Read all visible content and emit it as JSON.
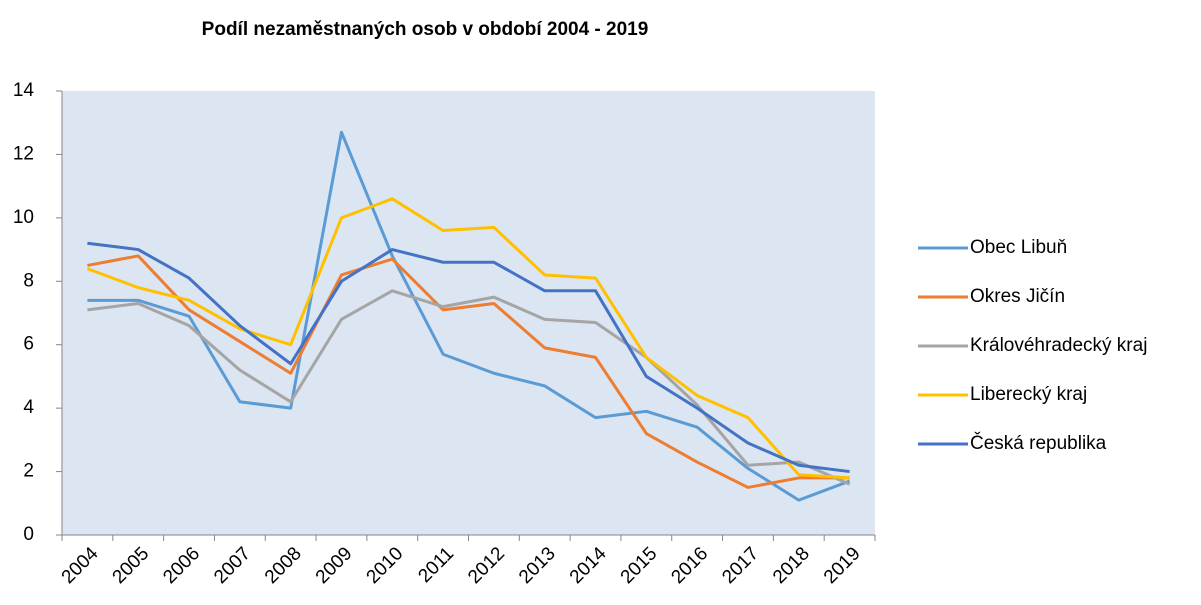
{
  "chart_data": {
    "type": "line",
    "title": "Podíl nezaměstnaných osob v období 2004 - 2019",
    "categories": [
      "2004",
      "2005",
      "2006",
      "2007",
      "2008",
      "2009",
      "2010",
      "2011",
      "2012",
      "2013",
      "2014",
      "2015",
      "2016",
      "2017",
      "2018",
      "2019"
    ],
    "series": [
      {
        "name": "Obec Libuň",
        "color": "#5b9bd5",
        "values": [
          7.4,
          7.4,
          6.9,
          4.2,
          4.0,
          12.7,
          8.8,
          5.7,
          5.1,
          4.7,
          3.7,
          3.9,
          3.4,
          2.1,
          1.1,
          1.7
        ]
      },
      {
        "name": "Okres Jičín",
        "color": "#ed7d31",
        "values": [
          8.5,
          8.8,
          7.1,
          6.1,
          5.1,
          8.2,
          8.7,
          7.1,
          7.3,
          5.9,
          5.6,
          3.2,
          2.3,
          1.5,
          1.8,
          1.8
        ]
      },
      {
        "name": "Královéhradecký kraj",
        "color": "#a5a5a5",
        "values": [
          7.1,
          7.3,
          6.6,
          5.2,
          4.2,
          6.8,
          7.7,
          7.2,
          7.5,
          6.8,
          6.7,
          5.6,
          4.1,
          2.2,
          2.3,
          1.6
        ]
      },
      {
        "name": "Liberecký kraj",
        "color": "#ffc000",
        "values": [
          8.4,
          7.8,
          7.4,
          6.5,
          6.0,
          10.0,
          10.6,
          9.6,
          9.7,
          8.2,
          8.1,
          5.6,
          4.4,
          3.7,
          1.9,
          1.8
        ]
      },
      {
        "name": "Česká republika",
        "color": "#4472c4",
        "values": [
          9.2,
          9.0,
          8.1,
          6.6,
          5.4,
          8.0,
          9.0,
          8.6,
          8.6,
          7.7,
          7.7,
          5.0,
          4.0,
          2.9,
          2.2,
          2.0
        ]
      }
    ],
    "ylim": [
      0,
      14
    ],
    "yticks": [
      0,
      2,
      4,
      6,
      8,
      10,
      12,
      14
    ],
    "legend": "right",
    "plot_background": "#dce6f2"
  }
}
